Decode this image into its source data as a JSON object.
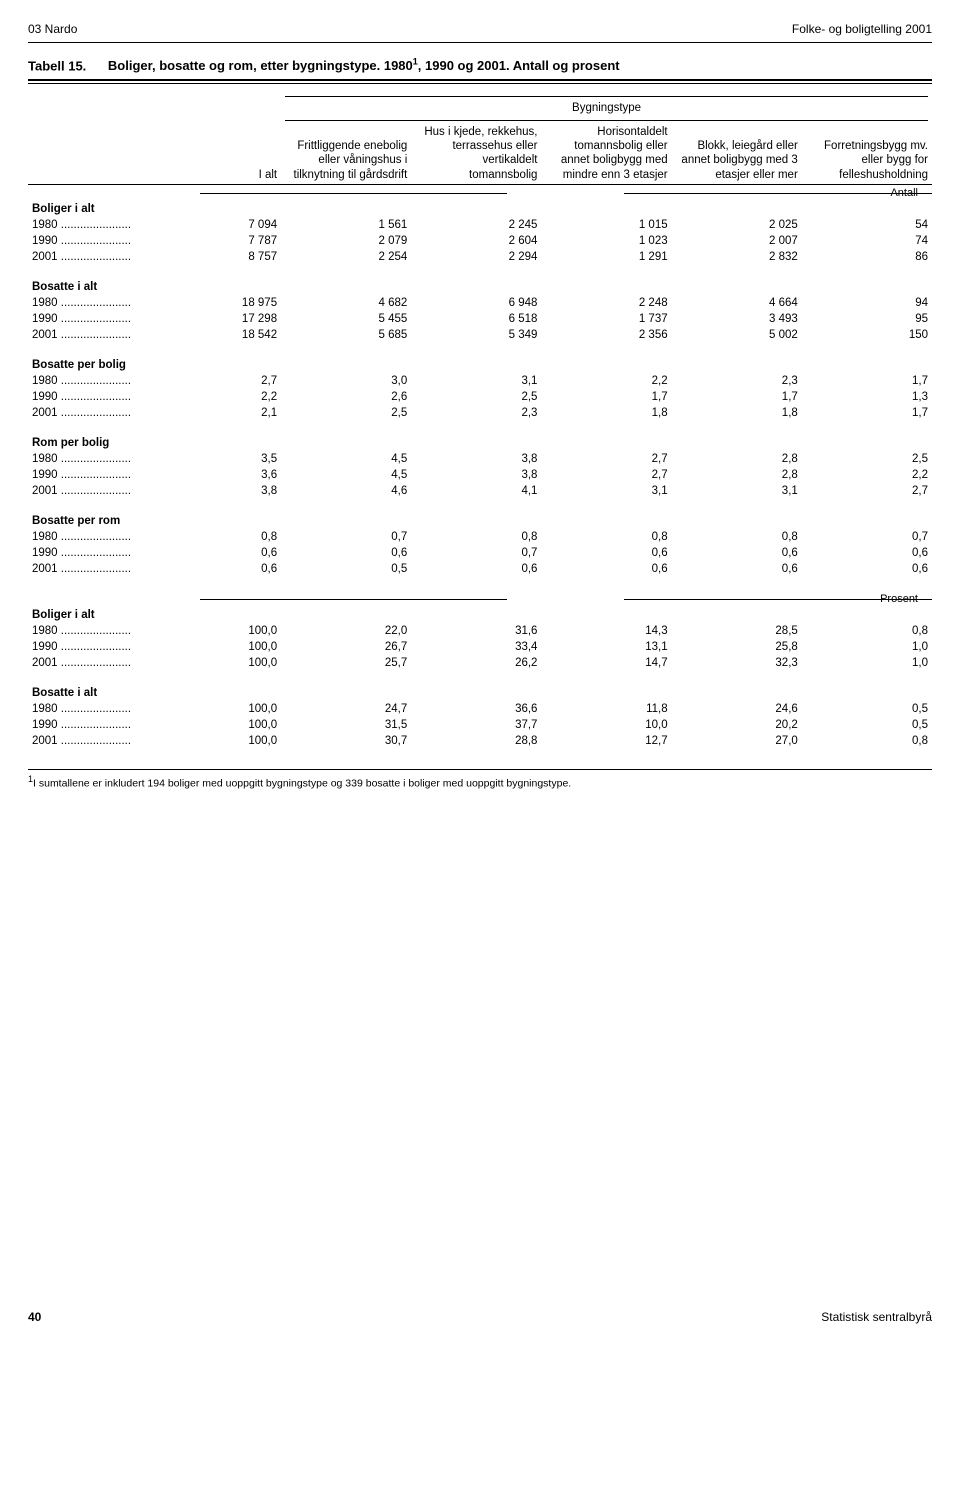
{
  "header": {
    "left": "03 Nardo",
    "right": "Folke- og boligtelling 2001"
  },
  "table": {
    "number": "Tabell 15.",
    "title_prefix": "Boliger, bosatte og rom, etter bygningstype. 1980",
    "title_sup": "1",
    "title_suffix": ", 1990 og 2001. Antall og prosent",
    "group_header": "Bygningstype",
    "col_headers": [
      "I alt",
      "Frittliggende enebolig eller våningshus i tilknytning til gårdsdrift",
      "Hus i kjede, rekkehus, terrassehus eller vertikaldelt tomannsbolig",
      "Horisontaldelt tomannsbolig eller annet boligbygg med mindre enn 3 etasjer",
      "Blokk, leiegård eller annet boligbygg med 3 etasjer eller mer",
      "Forretningsbygg mv. eller bygg for felleshusholdning"
    ],
    "split_labels": {
      "antall": "Antall",
      "prosent": "Prosent"
    },
    "sections_antall": [
      {
        "name": "Boliger i alt",
        "rows": [
          {
            "label": "1980 ......................",
            "v": [
              "7 094",
              "1 561",
              "2 245",
              "1 015",
              "2 025",
              "54"
            ]
          },
          {
            "label": "1990 ......................",
            "v": [
              "7 787",
              "2 079",
              "2 604",
              "1 023",
              "2 007",
              "74"
            ]
          },
          {
            "label": "2001 ......................",
            "v": [
              "8 757",
              "2 254",
              "2 294",
              "1 291",
              "2 832",
              "86"
            ]
          }
        ]
      },
      {
        "name": "Bosatte i alt",
        "rows": [
          {
            "label": "1980 ......................",
            "v": [
              "18 975",
              "4 682",
              "6 948",
              "2 248",
              "4 664",
              "94"
            ]
          },
          {
            "label": "1990 ......................",
            "v": [
              "17 298",
              "5 455",
              "6 518",
              "1 737",
              "3 493",
              "95"
            ]
          },
          {
            "label": "2001 ......................",
            "v": [
              "18 542",
              "5 685",
              "5 349",
              "2 356",
              "5 002",
              "150"
            ]
          }
        ]
      },
      {
        "name": "Bosatte per bolig",
        "rows": [
          {
            "label": "1980 ......................",
            "v": [
              "2,7",
              "3,0",
              "3,1",
              "2,2",
              "2,3",
              "1,7"
            ]
          },
          {
            "label": "1990 ......................",
            "v": [
              "2,2",
              "2,6",
              "2,5",
              "1,7",
              "1,7",
              "1,3"
            ]
          },
          {
            "label": "2001 ......................",
            "v": [
              "2,1",
              "2,5",
              "2,3",
              "1,8",
              "1,8",
              "1,7"
            ]
          }
        ]
      },
      {
        "name": "Rom per bolig",
        "rows": [
          {
            "label": "1980 ......................",
            "v": [
              "3,5",
              "4,5",
              "3,8",
              "2,7",
              "2,8",
              "2,5"
            ]
          },
          {
            "label": "1990 ......................",
            "v": [
              "3,6",
              "4,5",
              "3,8",
              "2,7",
              "2,8",
              "2,2"
            ]
          },
          {
            "label": "2001 ......................",
            "v": [
              "3,8",
              "4,6",
              "4,1",
              "3,1",
              "3,1",
              "2,7"
            ]
          }
        ]
      },
      {
        "name": "Bosatte per rom",
        "rows": [
          {
            "label": "1980 ......................",
            "v": [
              "0,8",
              "0,7",
              "0,8",
              "0,8",
              "0,8",
              "0,7"
            ]
          },
          {
            "label": "1990 ......................",
            "v": [
              "0,6",
              "0,6",
              "0,7",
              "0,6",
              "0,6",
              "0,6"
            ]
          },
          {
            "label": "2001 ......................",
            "v": [
              "0,6",
              "0,5",
              "0,6",
              "0,6",
              "0,6",
              "0,6"
            ]
          }
        ]
      }
    ],
    "sections_prosent": [
      {
        "name": "Boliger i alt",
        "rows": [
          {
            "label": "1980 ......................",
            "v": [
              "100,0",
              "22,0",
              "31,6",
              "14,3",
              "28,5",
              "0,8"
            ]
          },
          {
            "label": "1990 ......................",
            "v": [
              "100,0",
              "26,7",
              "33,4",
              "13,1",
              "25,8",
              "1,0"
            ]
          },
          {
            "label": "2001 ......................",
            "v": [
              "100,0",
              "25,7",
              "26,2",
              "14,7",
              "32,3",
              "1,0"
            ]
          }
        ]
      },
      {
        "name": "Bosatte i alt",
        "rows": [
          {
            "label": "1980 ......................",
            "v": [
              "100,0",
              "24,7",
              "36,6",
              "11,8",
              "24,6",
              "0,5"
            ]
          },
          {
            "label": "1990 ......................",
            "v": [
              "100,0",
              "31,5",
              "37,7",
              "10,0",
              "20,2",
              "0,5"
            ]
          },
          {
            "label": "2001 ......................",
            "v": [
              "100,0",
              "30,7",
              "28,8",
              "12,7",
              "27,0",
              "0,8"
            ]
          }
        ]
      }
    ],
    "footnote_sup": "1",
    "footnote": "I sumtallene er inkludert 194 boliger med uoppgitt bygningstype og 339 bosatte i boliger med uoppgitt bygningstype."
  },
  "footer": {
    "page": "40",
    "right": "Statistisk sentralbyrå"
  }
}
